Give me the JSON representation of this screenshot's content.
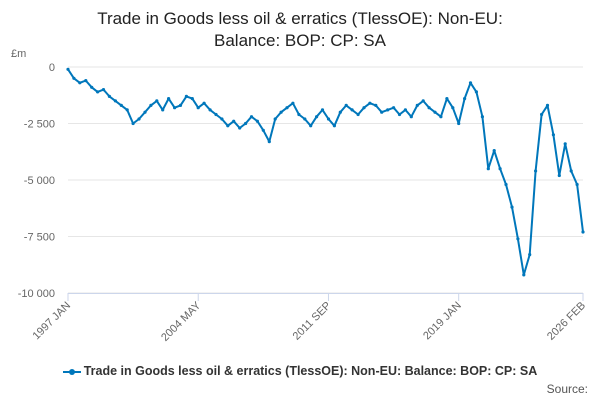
{
  "chart_data": {
    "type": "line",
    "title": "Trade in Goods less oil & erratics (TlessOE): Non-EU: Balance: BOP: CP: SA",
    "title_lines": [
      "Trade in Goods less oil & erratics (TlessOE): Non-EU:",
      "Balance: BOP: CP: SA"
    ],
    "ylabel": "£m",
    "ylim": [
      -10000,
      0
    ],
    "y_ticks": [
      0,
      -2500,
      -5000,
      -7500,
      -10000
    ],
    "y_tick_labels": [
      "0",
      "-2 500",
      "-5 000",
      "-7 500",
      "-10 000"
    ],
    "x_ticks": [
      "1997 JAN",
      "2004 MAY",
      "2011 SEP",
      "2019 JAN",
      "2026 FEB"
    ],
    "grid": true,
    "legend_position": "bottom",
    "color": "#0077bb",
    "series": [
      {
        "name": "Trade in Goods less oil & erratics (TlessOE): Non-EU: Balance: BOP: CP: SA",
        "x": [
          "1997 JAN",
          "1997 MAY",
          "1997 SEP",
          "1998 JAN",
          "1998 MAY",
          "1998 SEP",
          "1999 JAN",
          "1999 MAY",
          "1999 SEP",
          "2000 JAN",
          "2000 MAY",
          "2000 SEP",
          "2001 JAN",
          "2001 MAY",
          "2001 SEP",
          "2002 JAN",
          "2002 MAY",
          "2002 SEP",
          "2003 JAN",
          "2003 MAY",
          "2003 SEP",
          "2004 JAN",
          "2004 MAY",
          "2004 SEP",
          "2005 JAN",
          "2005 MAY",
          "2005 SEP",
          "2006 JAN",
          "2006 MAY",
          "2006 SEP",
          "2007 JAN",
          "2007 MAY",
          "2007 SEP",
          "2008 JAN",
          "2008 MAY",
          "2008 SEP",
          "2009 JAN",
          "2009 MAY",
          "2009 SEP",
          "2010 JAN",
          "2010 MAY",
          "2010 SEP",
          "2011 JAN",
          "2011 MAY",
          "2011 SEP",
          "2012 JAN",
          "2012 MAY",
          "2012 SEP",
          "2013 JAN",
          "2013 MAY",
          "2013 SEP",
          "2014 JAN",
          "2014 MAY",
          "2014 SEP",
          "2015 JAN",
          "2015 MAY",
          "2015 SEP",
          "2016 JAN",
          "2016 MAY",
          "2016 SEP",
          "2017 JAN",
          "2017 MAY",
          "2017 SEP",
          "2018 JAN",
          "2018 MAY",
          "2018 SEP",
          "2019 JAN",
          "2019 MAY",
          "2019 SEP",
          "2020 JAN",
          "2020 MAY",
          "2020 SEP",
          "2021 JAN",
          "2021 MAY",
          "2021 SEP",
          "2022 JAN",
          "2022 MAY",
          "2022 SEP",
          "2023 JAN",
          "2023 MAY",
          "2023 SEP",
          "2024 JAN",
          "2024 MAY",
          "2024 SEP",
          "2025 JAN",
          "2025 MAY",
          "2025 SEP",
          "2026 FEB"
        ],
        "values": [
          -100,
          -500,
          -700,
          -600,
          -900,
          -1100,
          -1000,
          -1300,
          -1500,
          -1700,
          -1900,
          -2500,
          -2300,
          -2000,
          -1700,
          -1500,
          -1900,
          -1400,
          -1800,
          -1700,
          -1300,
          -1400,
          -1800,
          -1600,
          -1900,
          -2100,
          -2300,
          -2600,
          -2400,
          -2700,
          -2500,
          -2200,
          -2400,
          -2800,
          -3300,
          -2300,
          -2000,
          -1800,
          -1600,
          -2100,
          -2300,
          -2600,
          -2200,
          -1900,
          -2300,
          -2600,
          -2000,
          -1700,
          -1900,
          -2100,
          -1800,
          -1600,
          -1700,
          -2000,
          -1900,
          -1800,
          -2100,
          -1900,
          -2200,
          -1700,
          -1500,
          -1800,
          -2000,
          -2200,
          -1400,
          -1800,
          -2500,
          -1400,
          -700,
          -1100,
          -2200,
          -4500,
          -3700,
          -4500,
          -5200,
          -6200,
          -7600,
          -9200,
          -8300,
          -4600,
          -2100,
          -1700,
          -3000,
          -4800,
          -3400,
          -4600,
          -5200,
          -7300
        ]
      }
    ]
  },
  "source_label": "Source:"
}
